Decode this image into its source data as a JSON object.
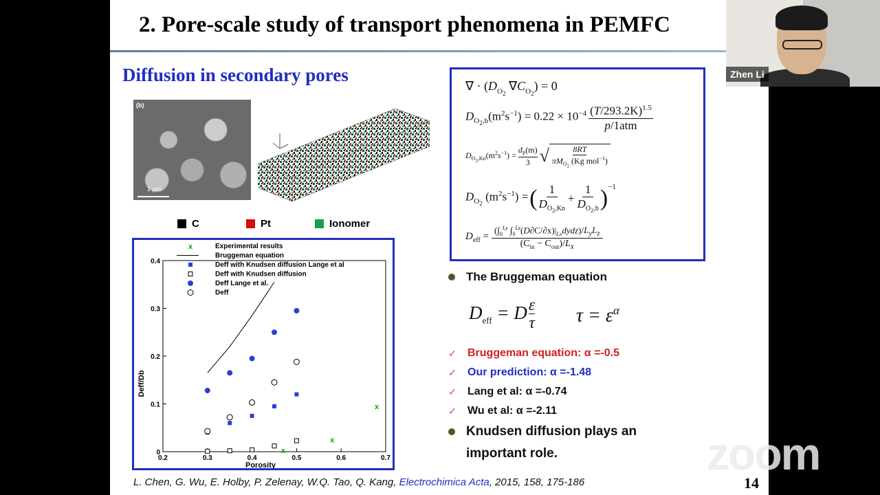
{
  "slide": {
    "title": "2. Pore-scale study of transport phenomena in PEMFC",
    "subtitle": "Diffusion in secondary pores",
    "sem_label": "(b)",
    "sem_scale": "1 μm",
    "page_number": "14"
  },
  "legend_top": [
    {
      "label": "C",
      "color": "#000000"
    },
    {
      "label": "Pt",
      "color": "#d01010"
    },
    {
      "label": "Ionomer",
      "color": "#10a050"
    }
  ],
  "chart_data": {
    "type": "scatter",
    "xlabel": "Porosity",
    "ylabel": "Deff/Db",
    "xlim": [
      0.2,
      0.7
    ],
    "ylim": [
      0,
      0.4
    ],
    "xticks": [
      "0.2",
      "0.3",
      "0.4",
      "0.5",
      "0.6",
      "0.7"
    ],
    "yticks": [
      "0",
      "0.1",
      "0.2",
      "0.3",
      "0.4"
    ],
    "legend_placement": "top",
    "series": [
      {
        "name": "Experimental results",
        "marker": "x",
        "color": "#10a010",
        "x": [
          0.47,
          0.58,
          0.68
        ],
        "y": [
          0.003,
          0.025,
          0.095
        ]
      },
      {
        "name": "Bruggeman equation",
        "marker": "line",
        "color": "#000000",
        "x": [
          0.3,
          0.35,
          0.4,
          0.45
        ],
        "y": [
          0.165,
          0.22,
          0.285,
          0.355
        ]
      },
      {
        "name": "Deff with Knudsen diffusion Lange et al",
        "marker": "filled-square",
        "color": "#2b3fd6",
        "x": [
          0.3,
          0.35,
          0.4,
          0.45,
          0.5
        ],
        "y": [
          0.04,
          0.06,
          0.075,
          0.095,
          0.12
        ]
      },
      {
        "name": "Deff with Knudsen diffusion",
        "marker": "open-square",
        "color": "#000000",
        "x": [
          0.3,
          0.35,
          0.4,
          0.45,
          0.5
        ],
        "y": [
          0.001,
          0.002,
          0.004,
          0.012,
          0.023
        ]
      },
      {
        "name": "Deff Lange et al.",
        "marker": "filled-circle",
        "color": "#2b3fd6",
        "x": [
          0.3,
          0.35,
          0.4,
          0.45,
          0.5
        ],
        "y": [
          0.128,
          0.165,
          0.195,
          0.25,
          0.295
        ]
      },
      {
        "name": "Deff",
        "marker": "open-circle",
        "color": "#000000",
        "x": [
          0.3,
          0.35,
          0.4,
          0.45,
          0.5
        ],
        "y": [
          0.043,
          0.072,
          0.103,
          0.145,
          0.188
        ]
      }
    ]
  },
  "bullets": {
    "bruggeman_heading": "The Bruggeman equation",
    "checks": [
      {
        "text": "Bruggeman equation: α =-0.5",
        "color": "#d02020"
      },
      {
        "text": "Our prediction: α =-1.48",
        "color": "#1f2fbf"
      },
      {
        "text": "Lang et al: α =-0.74",
        "color": "#111111"
      },
      {
        "text": "Wu et al: α =-2.11",
        "color": "#111111"
      }
    ],
    "knudsen_line1": "Knudsen diffusion plays an",
    "knudsen_line2": "important role."
  },
  "citation": {
    "authors": "L. Chen, G. Wu, E. Holby, P. Zelenay, W.Q. Tao, Q. Kang,",
    "journal": "Electrochimica Acta",
    "details": ", 2015, 158, 175-186"
  },
  "video": {
    "participant_name": "Zhen Li"
  },
  "watermark": "zoom"
}
